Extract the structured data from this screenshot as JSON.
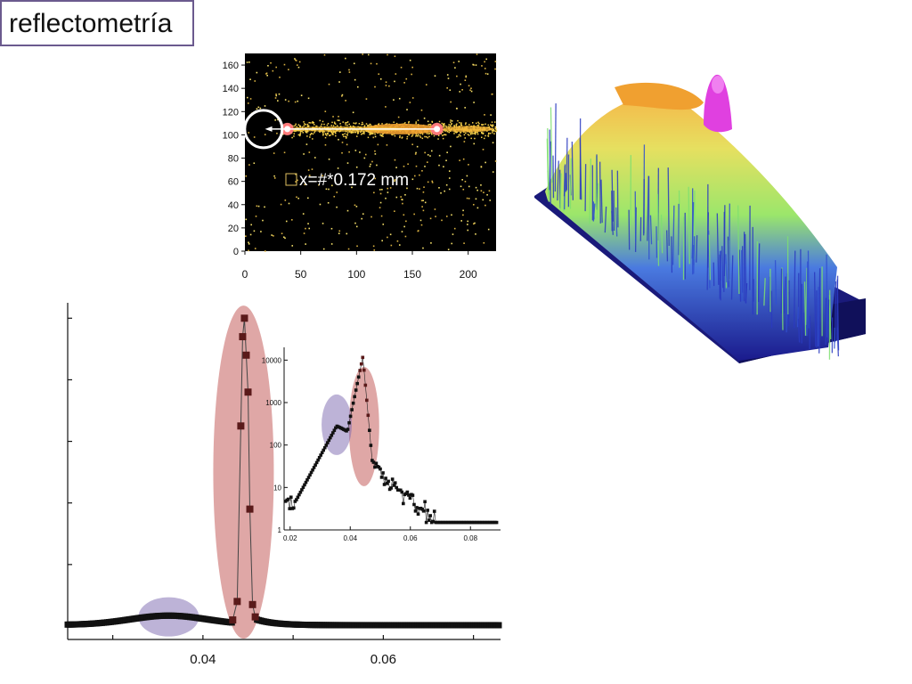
{
  "slide": {
    "title": "reflectometría"
  },
  "colors": {
    "title_border": "#6b5a8e",
    "detector_background": "#000000",
    "detector_signal": "#f5c842",
    "detector_hot": "#ff7a7a",
    "highlight_red": "#c0504d",
    "highlight_blue": "#7b68b0",
    "marker": "#5a1a1a",
    "surface_low": "#1a1a8c",
    "surface_mid": "#9be66b",
    "surface_high": "#f5b84a",
    "surface_peak": "#e040e0"
  },
  "chart_data": [
    {
      "id": "detector-image",
      "type": "heatmap",
      "annotation": "x=#*0.172 mm",
      "xlim": [
        0,
        225
      ],
      "ylim": [
        0,
        170
      ],
      "xticks": [
        "0",
        "50",
        "100",
        "150",
        "200"
      ],
      "yticks": [
        "0",
        "20",
        "40",
        "60",
        "80",
        "100",
        "120",
        "140",
        "160"
      ],
      "circle_center": [
        15,
        105
      ],
      "arrow_from": [
        172,
        105
      ],
      "arrow_to": [
        18,
        105
      ],
      "bright_spots": [
        [
          38,
          105
        ],
        [
          172,
          105
        ]
      ],
      "streak_x_range": [
        40,
        225
      ],
      "streak_y": 105
    },
    {
      "id": "surface-3d",
      "type": "area",
      "description_colors": [
        "blue",
        "green",
        "yellow",
        "magenta"
      ]
    },
    {
      "id": "reflectivity-linear",
      "type": "scatter",
      "xlabel": "",
      "ylabel": "",
      "xlim": [
        0.025,
        0.073
      ],
      "ylim": [
        0,
        1.05
      ],
      "xticks": [
        "0.04",
        "0.06"
      ],
      "xtick_values": [
        0.04,
        0.06
      ],
      "peak_points": [
        {
          "x": 0.0433,
          "y": 0.02
        },
        {
          "x": 0.0438,
          "y": 0.08
        },
        {
          "x": 0.0442,
          "y": 0.65
        },
        {
          "x": 0.0444,
          "y": 0.94
        },
        {
          "x": 0.0446,
          "y": 1.0
        },
        {
          "x": 0.0448,
          "y": 0.88
        },
        {
          "x": 0.045,
          "y": 0.76
        },
        {
          "x": 0.0452,
          "y": 0.38
        },
        {
          "x": 0.0455,
          "y": 0.07
        },
        {
          "x": 0.0458,
          "y": 0.03
        }
      ],
      "highlights": [
        {
          "name": "blue",
          "x_center": 0.0362,
          "y_center": 0.03
        },
        {
          "name": "red",
          "x_center": 0.0445,
          "y_center": 0.5
        }
      ]
    },
    {
      "id": "reflectivity-log-inset",
      "type": "scatter",
      "scale": "log",
      "xlim": [
        0.018,
        0.09
      ],
      "ylim": [
        1,
        20000
      ],
      "xticks": [
        "0.02",
        "0.04",
        "0.06",
        "0.08"
      ],
      "xtick_values": [
        0.02,
        0.04,
        0.06,
        0.08
      ],
      "yticks": [
        "1",
        "10",
        "100",
        "1000",
        "10000"
      ],
      "ytick_values": [
        1,
        10,
        100,
        1000,
        10000
      ],
      "highlights": [
        {
          "name": "blue",
          "x_center": 0.0355,
          "y_center": 300
        },
        {
          "name": "red",
          "x_center": 0.044,
          "y_center": 300
        }
      ]
    }
  ]
}
